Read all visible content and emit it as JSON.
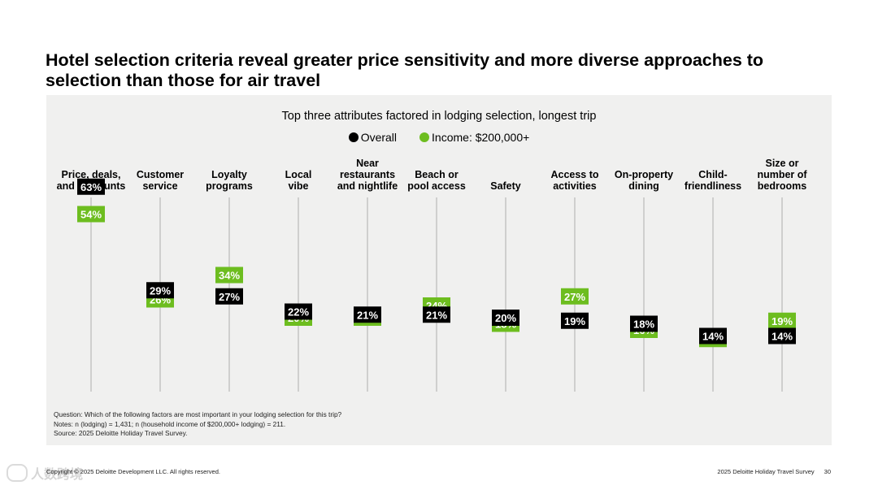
{
  "title": "Hotel selection criteria reveal greater price sensitivity and more diverse approaches to selection than those for air travel",
  "colors": {
    "overall": "#000000",
    "income": "#6dbd1f",
    "panel": "#f0f0ef",
    "gridline": "#c4c4c4"
  },
  "chart_data": {
    "type": "dot-plot",
    "title": "Top three attributes factored in lodging selection, longest trip",
    "legend": [
      "Overall",
      "Income: $200,000+"
    ],
    "legend_position": "top-center",
    "y_unit": "%",
    "categories": [
      [
        "Price, deals,",
        "and discounts"
      ],
      [
        "Customer",
        "service"
      ],
      [
        "Loyalty",
        "programs"
      ],
      [
        "Local",
        "vibe"
      ],
      [
        "Near",
        "restaurants",
        "and nightlife"
      ],
      [
        "Beach or",
        "pool access"
      ],
      [
        "Safety"
      ],
      [
        "Access to",
        "activities"
      ],
      [
        "On-property",
        "dining"
      ],
      [
        "Child-",
        "friendliness"
      ],
      [
        "Size or",
        "number of",
        "bedrooms"
      ]
    ],
    "series": [
      {
        "name": "Overall",
        "values": [
          63,
          29,
          27,
          22,
          21,
          21,
          20,
          19,
          18,
          14,
          14
        ]
      },
      {
        "name": "Income: $200,000+",
        "values": [
          54,
          26,
          34,
          20,
          20,
          24,
          18,
          27,
          16,
          13,
          19
        ]
      }
    ]
  },
  "notes": [
    "Question: Which of the following factors are most important in your lodging selection for this trip?",
    "Notes: n (lodging) = 1,431; n (household income of $200,000+ lodging) = 211.",
    "Source: 2025 Deloitte Holiday Travel Survey."
  ],
  "footer": {
    "copyright": "Copyright © 2025 Deloitte Development LLC. All rights reserved.",
    "report": "2025 Deloitte Holiday Travel Survey",
    "page": "30"
  },
  "watermark": "人数跨境"
}
